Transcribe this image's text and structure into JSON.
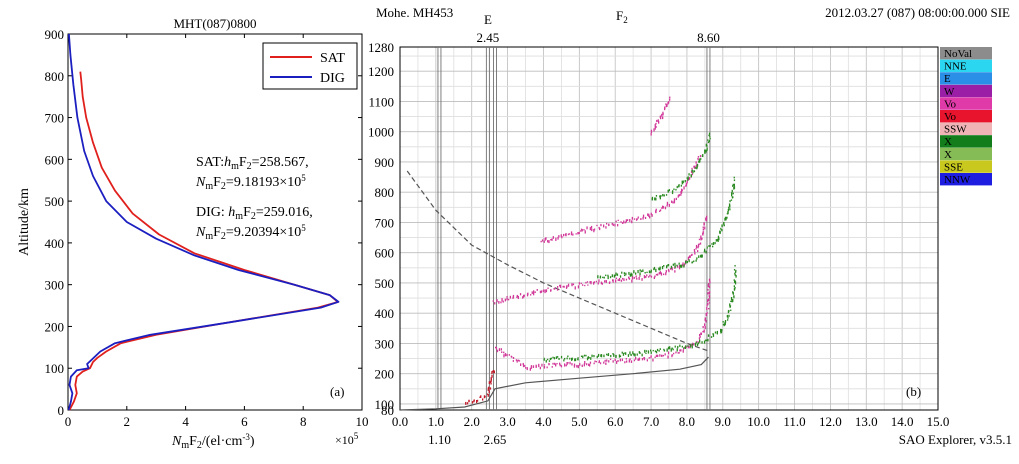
{
  "chart_data": [
    {
      "type": "line",
      "title": "MHT(087)0800",
      "xlabel_main": "N",
      "xlabel_sub1": "m",
      "xlabel_mid": "F",
      "xlabel_sub2": "2",
      "xlabel_rest": "/(el·cm",
      "xlabel_sup": "-3",
      "xlabel_end": ")",
      "x_multiplier": "×10",
      "x_multiplier_exp": "5",
      "ylabel": "Altitude/km",
      "xlim": [
        0,
        10
      ],
      "ylim": [
        0,
        900
      ],
      "x_ticks": [
        "0",
        "2",
        "4",
        "6",
        "8",
        "10"
      ],
      "y_ticks": [
        "0",
        "100",
        "200",
        "300",
        "400",
        "500",
        "600",
        "700",
        "800",
        "900"
      ],
      "panel_label": "(a)",
      "legend": {
        "position": "top-right"
      },
      "series": [
        {
          "name": "SAT",
          "color": "#e0201c",
          "points": [
            [
              0.05,
              0
            ],
            [
              0.2,
              20
            ],
            [
              0.3,
              40
            ],
            [
              0.25,
              60
            ],
            [
              0.3,
              80
            ],
            [
              0.5,
              92
            ],
            [
              0.75,
              100
            ],
            [
              0.85,
              115
            ],
            [
              1.0,
              125
            ],
            [
              1.3,
              140
            ],
            [
              1.8,
              160
            ],
            [
              3.0,
              180
            ],
            [
              5.5,
              210
            ],
            [
              8.5,
              245
            ],
            [
              9.18,
              258.6
            ],
            [
              8.9,
              275
            ],
            [
              7.7,
              300
            ],
            [
              6.0,
              335
            ],
            [
              4.3,
              375
            ],
            [
              3.1,
              420
            ],
            [
              2.2,
              470
            ],
            [
              1.6,
              525
            ],
            [
              1.15,
              580
            ],
            [
              0.85,
              640
            ],
            [
              0.62,
              700
            ],
            [
              0.5,
              750
            ],
            [
              0.45,
              790
            ],
            [
              0.42,
              810
            ]
          ]
        },
        {
          "name": "DIG",
          "color": "#1c1fc0",
          "points": [
            [
              0.02,
              0
            ],
            [
              0.1,
              20
            ],
            [
              0.15,
              40
            ],
            [
              0.05,
              60
            ],
            [
              0.1,
              80
            ],
            [
              0.3,
              95
            ],
            [
              0.7,
              100
            ],
            [
              0.65,
              110
            ],
            [
              0.8,
              120
            ],
            [
              1.1,
              140
            ],
            [
              1.6,
              160
            ],
            [
              2.8,
              180
            ],
            [
              5.5,
              210
            ],
            [
              8.6,
              245
            ],
            [
              9.2,
              259
            ],
            [
              8.9,
              275
            ],
            [
              7.7,
              300
            ],
            [
              5.8,
              335
            ],
            [
              4.3,
              370
            ],
            [
              3.0,
              410
            ],
            [
              2.0,
              450
            ],
            [
              1.3,
              500
            ],
            [
              0.85,
              560
            ],
            [
              0.55,
              620
            ],
            [
              0.32,
              700
            ],
            [
              0.18,
              780
            ],
            [
              0.08,
              850
            ],
            [
              0.03,
              900
            ]
          ]
        }
      ],
      "annotations": [
        {
          "label": "SAT:",
          "h": "h",
          "hsub": "m",
          "f": "F",
          "fsub": "2",
          "val": "=258.567,",
          "label2": "N",
          "nsub": "m",
          "f2": "F",
          "f2sub": "2",
          "val2": "=9.18193×10",
          "exp": "5"
        },
        {
          "label": "DIG: ",
          "h": "h",
          "hsub": "m",
          "f": "F",
          "fsub": "2",
          "val": "=259.016,",
          "label2": "N",
          "nsub": "m",
          "f2": "F",
          "f2sub": "2",
          "val2": "=9.20394×10",
          "exp": "5"
        }
      ]
    },
    {
      "type": "scatter",
      "header_left": "Mohe. MH453",
      "header_right": "2012.03.27 (087) 08:00:00.000 SIE",
      "layer_e": "E",
      "layer_f": "F",
      "layer_f_sub": "2",
      "footer": "SAO Explorer, v3.5.1",
      "panel_label": "(b)",
      "xlim": [
        0,
        15
      ],
      "ylim": [
        80,
        1280
      ],
      "x_ticks": [
        "0.0",
        "1.0",
        "2.0",
        "3.0",
        "4.0",
        "5.0",
        "6.0",
        "7.0",
        "8.0",
        "9.0",
        "10.0",
        "11.0",
        "12.0",
        "13.0",
        "14.0",
        "15.0"
      ],
      "y_ticks": [
        "80",
        "100",
        "200",
        "300",
        "400",
        "500",
        "600",
        "700",
        "800",
        "900",
        "1000",
        "1100",
        "1200",
        "1280"
      ],
      "markers_top": [
        {
          "x": 2.45,
          "label": "2.45"
        },
        {
          "x": 8.6,
          "label": "8.60"
        }
      ],
      "markers_bottom": [
        {
          "x": 1.1,
          "label": "1.10"
        },
        {
          "x": 2.65,
          "label": "2.65"
        }
      ],
      "legend": [
        {
          "label": "NoVal",
          "color": "#8c8c8c"
        },
        {
          "label": "NNE",
          "color": "#2ad6f0"
        },
        {
          "label": "E",
          "color": "#2b8fe8"
        },
        {
          "label": "W",
          "color": "#9a1fa6"
        },
        {
          "label": "Vo",
          "color": "#e03aa8"
        },
        {
          "label": "Vo",
          "color": "#e8132c"
        },
        {
          "label": "SSW",
          "color": "#f0b4b6"
        },
        {
          "label": "X",
          "color": "#127d1a"
        },
        {
          "label": "X",
          "color": "#86bc56"
        },
        {
          "label": "SSE",
          "color": "#c8c81e"
        },
        {
          "label": "NNW",
          "color": "#1e1ee0"
        }
      ],
      "traces": [
        {
          "name": "O-mode main",
          "color": "#d23a9a",
          "points": [
            [
              2.65,
              290
            ],
            [
              3.5,
              225
            ],
            [
              5.0,
              235
            ],
            [
              6.0,
              245
            ],
            [
              7.0,
              255
            ],
            [
              7.8,
              275
            ],
            [
              8.3,
              310
            ],
            [
              8.5,
              370
            ],
            [
              8.58,
              430
            ],
            [
              8.6,
              520
            ]
          ]
        },
        {
          "name": "X-mode main",
          "color": "#2b8a22",
          "points": [
            [
              4.0,
              250
            ],
            [
              5.5,
              260
            ],
            [
              7.0,
              275
            ],
            [
              8.2,
              300
            ],
            [
              8.9,
              340
            ],
            [
              9.15,
              400
            ],
            [
              9.3,
              480
            ],
            [
              9.35,
              560
            ]
          ]
        },
        {
          "name": "O-mode 2-hop",
          "color": "#d23a9a",
          "points": [
            [
              2.6,
              440
            ],
            [
              4.0,
              480
            ],
            [
              5.5,
              505
            ],
            [
              7.0,
              525
            ],
            [
              7.8,
              555
            ],
            [
              8.25,
              610
            ],
            [
              8.45,
              680
            ],
            [
              8.55,
              730
            ]
          ]
        },
        {
          "name": "X-mode 2-hop",
          "color": "#2b8a22",
          "points": [
            [
              5.5,
              520
            ],
            [
              7.0,
              545
            ],
            [
              8.2,
              575
            ],
            [
              8.8,
              640
            ],
            [
              9.1,
              720
            ],
            [
              9.25,
              790
            ],
            [
              9.3,
              850
            ]
          ]
        },
        {
          "name": "O-mode 3-hop",
          "color": "#d23a9a",
          "points": [
            [
              3.9,
              640
            ],
            [
              5.0,
              675
            ],
            [
              6.0,
              700
            ],
            [
              7.0,
              730
            ],
            [
              7.7,
              780
            ],
            [
              8.1,
              860
            ],
            [
              8.35,
              930
            ]
          ]
        },
        {
          "name": "X-mode 3-hop",
          "color": "#2b8a22",
          "points": [
            [
              7.0,
              780
            ],
            [
              7.6,
              810
            ],
            [
              8.1,
              860
            ],
            [
              8.5,
              940
            ],
            [
              8.65,
              1000
            ]
          ]
        },
        {
          "name": "O-mode 4-hop",
          "color": "#d23a9a",
          "points": [
            [
              7.0,
              1000
            ],
            [
              7.3,
              1060
            ],
            [
              7.55,
              1120
            ]
          ]
        },
        {
          "name": "E-layer",
          "color": "#c01a2a",
          "points": [
            [
              1.8,
              110
            ],
            [
              2.2,
              120
            ],
            [
              2.45,
              135
            ],
            [
              2.5,
              170
            ],
            [
              2.6,
              220
            ]
          ]
        }
      ],
      "profile_lines": [
        {
          "name": "true-height",
          "style": "solid",
          "points": [
            [
              0.0,
              80
            ],
            [
              1.0,
              84
            ],
            [
              1.8,
              90
            ],
            [
              2.45,
              110
            ],
            [
              2.65,
              150
            ],
            [
              3.5,
              170
            ],
            [
              5.0,
              185
            ],
            [
              6.5,
              200
            ],
            [
              7.8,
              215
            ],
            [
              8.4,
              230
            ],
            [
              8.6,
              255
            ]
          ]
        },
        {
          "name": "model",
          "style": "dashed",
          "points": [
            [
              0.2,
              870
            ],
            [
              1.0,
              740
            ],
            [
              2.0,
              625
            ],
            [
              3.0,
              560
            ],
            [
              4.0,
              500
            ],
            [
              5.0,
              450
            ],
            [
              6.0,
              400
            ],
            [
              7.0,
              350
            ],
            [
              8.0,
              300
            ],
            [
              8.6,
              275
            ]
          ]
        }
      ]
    }
  ]
}
